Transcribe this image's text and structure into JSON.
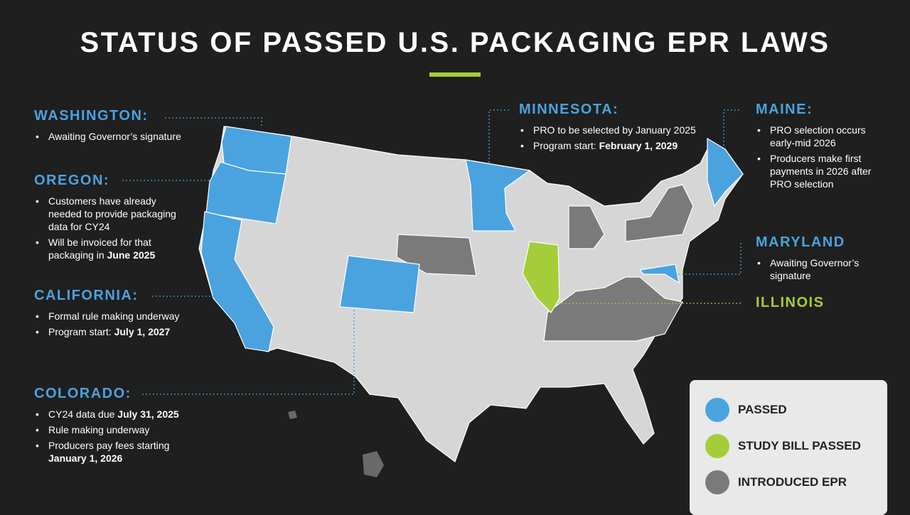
{
  "header": {
    "title": "STATUS OF PASSED U.S. PACKAGING EPR LAWS"
  },
  "callouts": [
    {
      "name": "WASHINGTON:",
      "color": "#4aa3df",
      "items": [
        {
          "text": "Awaiting Governor’s signature"
        }
      ]
    },
    {
      "name": "OREGON:",
      "color": "#4aa3df",
      "items": [
        {
          "text": "Customers have already needed to provide packaging data for CY24"
        },
        {
          "text": "Will be invoiced for that packaging in ",
          "bold": "June 2025"
        }
      ]
    },
    {
      "name": "CALIFORNIA:",
      "color": "#4aa3df",
      "items": [
        {
          "text": "Formal rule making underway"
        },
        {
          "text": "Program start: ",
          "bold": "July 1, 2027"
        }
      ]
    },
    {
      "name": "COLORADO:",
      "color": "#4aa3df",
      "items": [
        {
          "text": "CY24 data due ",
          "bold": "July 31, 2025"
        },
        {
          "text": "Rule making underway"
        },
        {
          "text": "Producers pay fees starting ",
          "bold": "January 1, 2026"
        }
      ]
    },
    {
      "name": "MINNESOTA:",
      "color": "#4aa3df",
      "items": [
        {
          "text": "PRO to be selected by January 2025"
        },
        {
          "text": "Program start: ",
          "bold": "February 1, 2029"
        }
      ]
    },
    {
      "name": "MAINE:",
      "color": "#4aa3df",
      "items": [
        {
          "text": "PRO selection occurs early-mid 2026"
        },
        {
          "text": "Producers make first payments in 2026 after PRO selection"
        }
      ]
    },
    {
      "name": "MARYLAND",
      "color": "#4aa3df",
      "items": [
        {
          "text": "Awaiting Governor’s signature"
        }
      ]
    },
    {
      "name": "ILLINOIS",
      "color": "#a5cd39",
      "items": []
    }
  ],
  "legend": [
    {
      "label": "PASSED",
      "color": "#4aa3df"
    },
    {
      "label": "STUDY BILL PASSED",
      "color": "#a5cd39"
    },
    {
      "label": "INTRODUCED EPR",
      "color": "#7a7a7a"
    }
  ]
}
